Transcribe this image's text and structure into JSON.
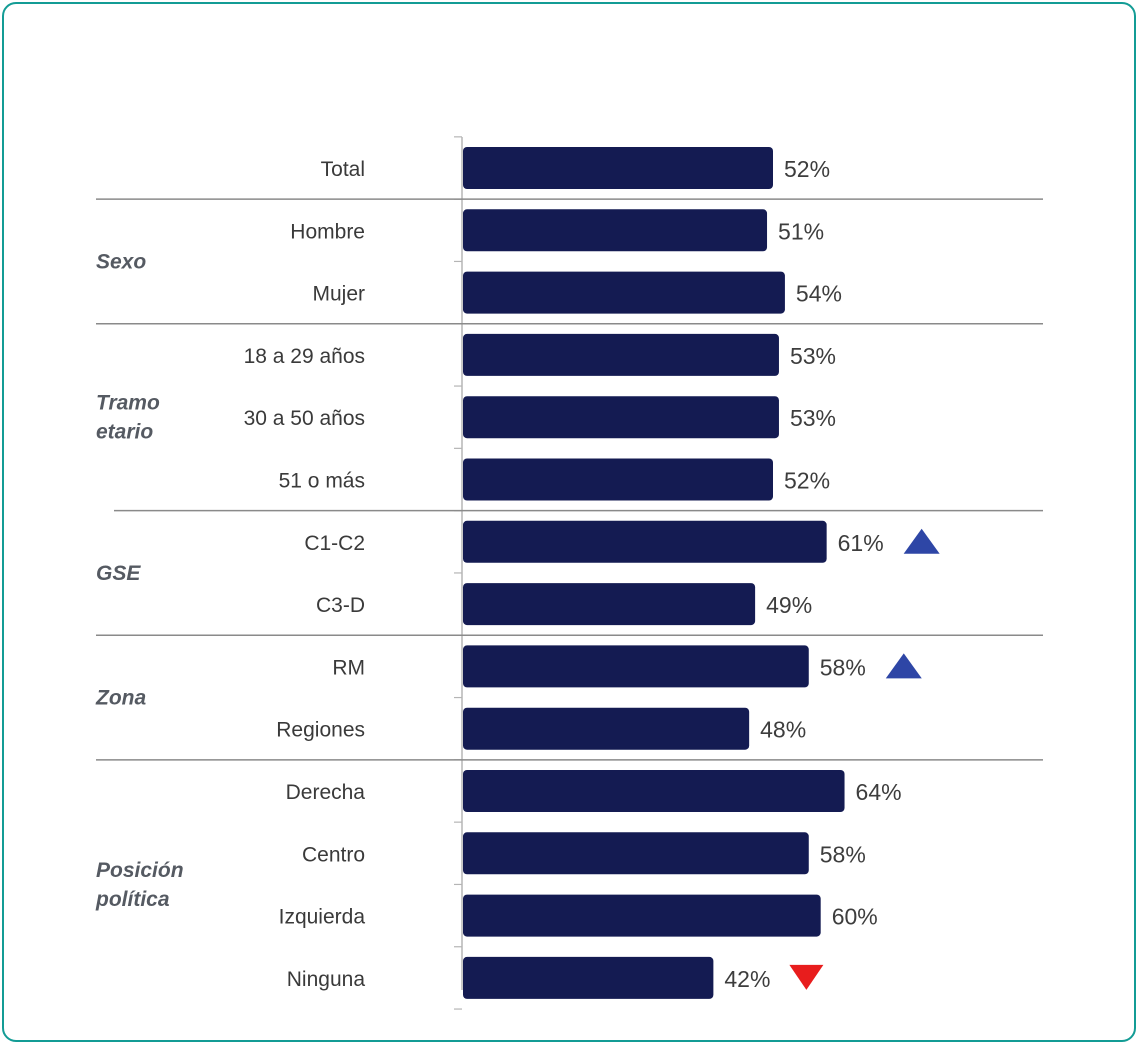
{
  "colors": {
    "bar": "#141b52",
    "up_marker": "#2e46a6",
    "down_marker": "#e81d1d",
    "frame": "#139c95",
    "separator": "#8a8a8a"
  },
  "chart_data": {
    "type": "bar",
    "orientation": "horizontal",
    "categories": [
      "Total",
      "Hombre",
      "Mujer",
      "18 a 29 años",
      "30 a 50 años",
      "51 o más",
      "C1-C2",
      "C3-D",
      "RM",
      "Regiones",
      "Derecha",
      "Centro",
      "Izquierda",
      "Ninguna"
    ],
    "values": [
      52,
      51,
      54,
      53,
      53,
      52,
      61,
      49,
      58,
      48,
      64,
      58,
      60,
      42
    ],
    "value_labels": [
      "52%",
      "51%",
      "54%",
      "53%",
      "53%",
      "52%",
      "61%",
      "49%",
      "58%",
      "48%",
      "64%",
      "58%",
      "60%",
      "42%"
    ],
    "markers": [
      "",
      "",
      "",
      "",
      "",
      "",
      "up",
      "",
      "up",
      "",
      "",
      "",
      "",
      "down"
    ],
    "groups": [
      {
        "label": [
          "Sexo"
        ],
        "categories": [
          "Hombre",
          "Mujer"
        ]
      },
      {
        "label": [
          "Tramo",
          "etario"
        ],
        "categories": [
          "18 a 29 años",
          "30 a 50 años",
          "51 o más"
        ]
      },
      {
        "label": [
          "GSE"
        ],
        "categories": [
          "C1-C2",
          "C3-D"
        ]
      },
      {
        "label": [
          "Zona"
        ],
        "categories": [
          "RM",
          "Regiones"
        ]
      },
      {
        "label": [
          "Posición",
          "política"
        ],
        "categories": [
          "Derecha",
          "Centro",
          "Izquierda",
          "Ninguna"
        ]
      }
    ],
    "unit": "%",
    "grid": false,
    "legend": "none"
  }
}
